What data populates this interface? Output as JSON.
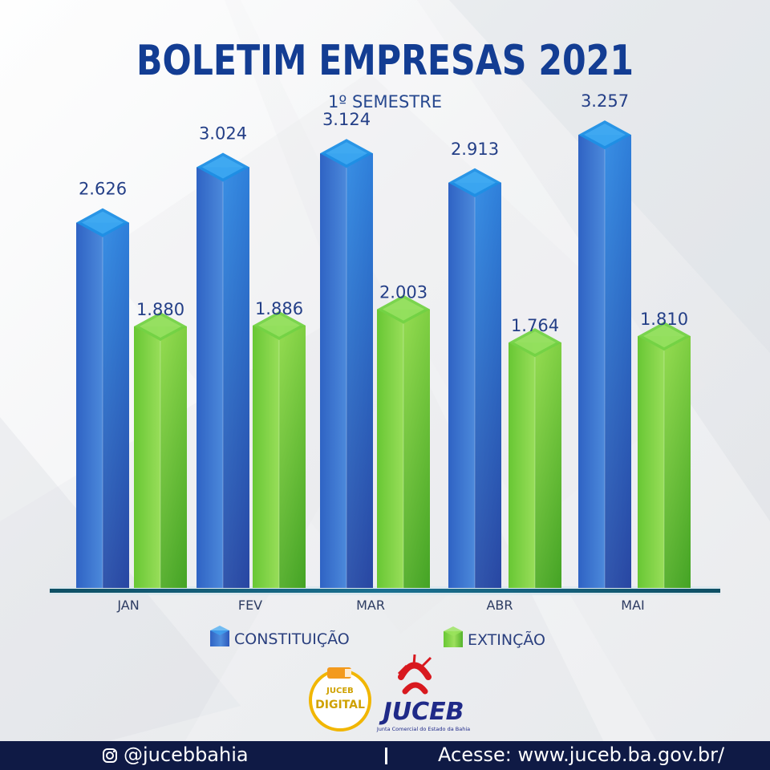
{
  "header": {
    "title": "BOLETIM EMPRESAS 2021",
    "subtitle": "1º SEMESTRE"
  },
  "chart_data": {
    "type": "bar",
    "categories": [
      "JAN",
      "FEV",
      "MAR",
      "ABR",
      "MAI"
    ],
    "series": [
      {
        "name": "CONSTITUIÇÃO",
        "values": [
          2626,
          3024,
          3124,
          2913,
          3257
        ],
        "labels": [
          "2.626",
          "3.024",
          "3.124",
          "2.913",
          "3.257"
        ],
        "color": "#3d7fd6"
      },
      {
        "name": "EXTINÇÃO",
        "values": [
          1880,
          1886,
          2003,
          1764,
          1810
        ],
        "labels": [
          "1.880",
          "1.886",
          "2.003",
          "1.764",
          "1.810"
        ],
        "color": "#72c93c"
      }
    ],
    "title": "BOLETIM EMPRESAS 2021",
    "subtitle": "1º SEMESTRE",
    "legend_placement": "bottom",
    "grid": false,
    "ylim": [
      0,
      3500
    ]
  },
  "logos": {
    "left": "JUCEB DIGITAL",
    "right": "JUCEB",
    "right_subtitle": "Junta Comercial do Estado da Bahia"
  },
  "footer": {
    "social": "@jucebbahia",
    "site": "Acesse: www.juceb.ba.gov.br/"
  },
  "colors": {
    "title": "#133d93",
    "footer_bg": "#0f1a45",
    "constituicao": "#3d7fd6",
    "extincao": "#72c93c"
  },
  "icons": {
    "instagram": "instagram-icon"
  }
}
